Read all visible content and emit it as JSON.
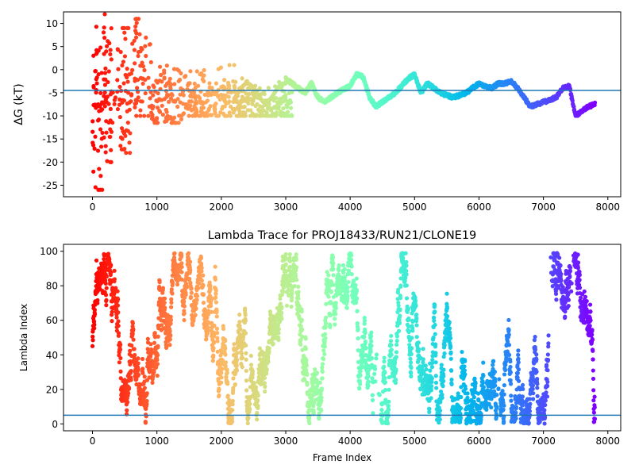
{
  "chart_data": [
    {
      "type": "scatter",
      "title": "",
      "xlabel": "",
      "ylabel": "ΔG (kT)",
      "xlim": [
        -450,
        8200
      ],
      "ylim": [
        -27.5,
        12.5
      ],
      "xticks": [
        0,
        1000,
        2000,
        3000,
        4000,
        5000,
        6000,
        7000,
        8000
      ],
      "yticks": [
        -25,
        -20,
        -15,
        -10,
        -5,
        0,
        5,
        10
      ],
      "hline": -4.5,
      "hline_color": "#1f77b4",
      "colormap": "rainbow (red at frame 0 → violet at last frame)",
      "n_frames": 7800,
      "series": [
        {
          "values_by_frame_range": [
            {
              "x": [
                0,
                150
              ],
              "y_min": -26,
              "y_max": 12
            },
            {
              "x": [
                150,
                300
              ],
              "y_min": -20,
              "y_max": 12
            },
            {
              "x": [
                300,
                600
              ],
              "y_min": -18,
              "y_max": 9
            },
            {
              "x": [
                600,
                900
              ],
              "y_min": -10,
              "y_max": 11
            },
            {
              "x": [
                900,
                1400
              ],
              "y_min": -11.5,
              "y_max": 3
            },
            {
              "x": [
                1400,
                2200
              ],
              "y_min": -10,
              "y_max": 1
            },
            {
              "x": [
                2200,
                3100
              ],
              "y_min": -10,
              "y_max": -1
            }
          ],
          "trace_anchors": {
            "x": [
              3000,
              3100,
              3300,
              3400,
              3500,
              3600,
              3800,
              4000,
              4100,
              4200,
              4300,
              4400,
              4500,
              4700,
              4900,
              5000,
              5100,
              5200,
              5400,
              5600,
              5800,
              6000,
              6200,
              6300,
              6400,
              6500,
              6600,
              6700,
              6800,
              7000,
              7200,
              7300,
              7400,
              7500,
              7600,
              7700,
              7800
            ],
            "y": [
              -2,
              -3,
              -5,
              -3,
              -6,
              -7,
              -5,
              -3.5,
              -1,
              -1.5,
              -6,
              -8,
              -7,
              -5,
              -2,
              -1,
              -5,
              -3,
              -5,
              -6,
              -5,
              -3,
              -4,
              -3,
              -3,
              -2.5,
              -4,
              -6,
              -8,
              -7,
              -6,
              -4,
              -3.5,
              -10,
              -9,
              -8,
              -7.5
            ]
          }
        }
      ]
    },
    {
      "type": "scatter",
      "title": "Lambda Trace for PROJ18433/RUN21/CLONE19",
      "xlabel": "Frame Index",
      "ylabel": "Lambda Index",
      "xlim": [
        -450,
        8200
      ],
      "ylim": [
        -4,
        104
      ],
      "xticks": [
        0,
        1000,
        2000,
        3000,
        4000,
        5000,
        6000,
        7000,
        8000
      ],
      "yticks": [
        0,
        20,
        40,
        60,
        80,
        100
      ],
      "hline": 5,
      "hline_color": "#1f77b4",
      "colormap": "rainbow (red at frame 0 → violet at last frame)",
      "n_frames": 7800,
      "value_range": [
        0,
        99
      ],
      "series": [
        {
          "dense_regions": [
            [
              0,
              4400
            ],
            [
              4500,
              7800
            ]
          ],
          "sparse_gaps_x": [
            [
              4350,
              4480
            ],
            [
              6280,
              6330
            ],
            [
              7080,
              7140
            ],
            [
              7420,
              7480
            ]
          ]
        }
      ]
    }
  ]
}
